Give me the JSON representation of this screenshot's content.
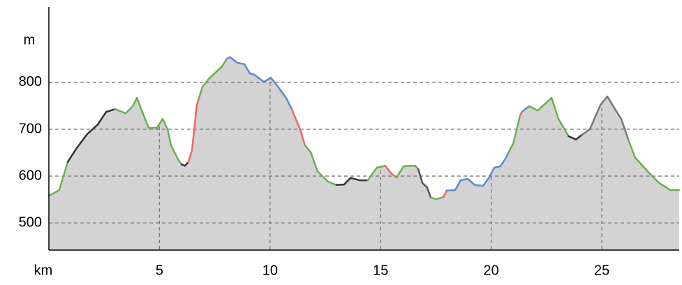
{
  "chart_data": {
    "type": "area",
    "x_label": "km",
    "y_label": "m",
    "xlim": [
      0,
      28.5
    ],
    "ylim": [
      442,
      961
    ],
    "xticks": [
      5,
      10,
      15,
      20,
      25
    ],
    "yticks": [
      500,
      600,
      700,
      800
    ],
    "grid": true,
    "fill_color": "#d3d3d3",
    "series": [
      {
        "color": "#6ab04c",
        "x": [
          0,
          0.47,
          0.85
        ],
        "values": [
          558,
          570,
          630
        ]
      },
      {
        "color": "#333333",
        "x": [
          0.85,
          1.26,
          1.74,
          2.21,
          2.59,
          3.0
        ],
        "values": [
          630,
          660,
          690,
          710,
          737,
          743
        ]
      },
      {
        "color": "#6ab04c",
        "x": [
          3.0,
          3.47,
          3.79,
          3.98,
          4.2,
          4.51,
          4.89,
          5.14,
          5.37,
          5.52,
          5.84,
          6.0
        ],
        "values": [
          743,
          734,
          749,
          767,
          740,
          703,
          703,
          722,
          700,
          666,
          636,
          625
        ]
      },
      {
        "color": "#333333",
        "x": [
          6.0,
          6.15,
          6.31
        ],
        "values": [
          625,
          622,
          630
        ]
      },
      {
        "color": "#f06464",
        "x": [
          6.31,
          6.47,
          6.69,
          6.79
        ],
        "values": [
          630,
          655,
          752,
          767
        ]
      },
      {
        "color": "#6ab04c",
        "x": [
          6.79,
          6.94,
          7.26,
          7.83,
          8.05
        ],
        "values": [
          767,
          790,
          809,
          834,
          851
        ]
      },
      {
        "color": "#5b8ad0",
        "x": [
          8.05,
          8.2,
          8.52,
          8.84,
          9.09,
          9.31,
          9.72,
          10.04,
          10.26,
          10.73,
          10.98
        ],
        "values": [
          851,
          854,
          842,
          839,
          819,
          816,
          801,
          810,
          797,
          767,
          743
        ]
      },
      {
        "color": "#f06464",
        "x": [
          10.98,
          11.36,
          11.58
        ],
        "values": [
          743,
          700,
          666
        ]
      },
      {
        "color": "#6ab04c",
        "x": [
          11.58,
          11.84,
          12.15,
          12.63,
          13.0
        ],
        "values": [
          666,
          651,
          610,
          588,
          581
        ]
      },
      {
        "color": "#333333",
        "x": [
          13.0,
          13.35,
          13.64,
          14.05,
          14.42
        ],
        "values": [
          581,
          582,
          596,
          591,
          591
        ]
      },
      {
        "color": "#6ab04c",
        "x": [
          14.42,
          14.83,
          15.21
        ],
        "values": [
          591,
          618,
          622
        ]
      },
      {
        "color": "#f06464",
        "x": [
          15.21,
          15.47,
          15.72
        ],
        "values": [
          622,
          606,
          597
        ]
      },
      {
        "color": "#6ab04c",
        "x": [
          15.72,
          16.04,
          16.57,
          16.7
        ],
        "values": [
          597,
          621,
          622,
          615
        ]
      },
      {
        "color": "#555555",
        "x": [
          16.7,
          16.89,
          17.1,
          17.27
        ],
        "values": [
          615,
          585,
          576,
          554
        ]
      },
      {
        "color": "#6ab04c",
        "x": [
          17.27,
          17.52,
          17.83
        ],
        "values": [
          554,
          551,
          555
        ]
      },
      {
        "color": "#f06464",
        "x": [
          17.83,
          17.99
        ],
        "values": [
          555,
          569
        ]
      },
      {
        "color": "#5b8ad0",
        "x": [
          17.99,
          18.37,
          18.62,
          18.94,
          19.26,
          19.63,
          19.89,
          20.14,
          20.42,
          20.68,
          20.8
        ],
        "values": [
          569,
          570,
          591,
          594,
          581,
          579,
          596,
          618,
          621,
          640,
          652
        ]
      },
      {
        "color": "#6ab04c",
        "x": [
          20.8,
          21.0,
          21.31
        ],
        "values": [
          652,
          670,
          730
        ]
      },
      {
        "color": "#f06464",
        "x": [
          21.31,
          21.4
        ],
        "values": [
          730,
          738
        ]
      },
      {
        "color": "#5b8ad0",
        "x": [
          21.4,
          21.72
        ],
        "values": [
          738,
          749
        ]
      },
      {
        "color": "#6ab04c",
        "x": [
          21.72,
          22.1,
          22.57,
          22.73,
          23.04,
          23.5
        ],
        "values": [
          749,
          740,
          760,
          767,
          722,
          685
        ]
      },
      {
        "color": "#333333",
        "x": [
          23.5,
          23.83,
          24.1
        ],
        "values": [
          685,
          678,
          688
        ]
      },
      {
        "color": "#777777",
        "x": [
          24.1,
          24.46,
          24.94,
          25.25,
          25.57,
          25.88,
          26.2
        ],
        "values": [
          688,
          700,
          752,
          770,
          745,
          722,
          678
        ]
      },
      {
        "color": "#6ab04c",
        "x": [
          26.2,
          26.5,
          27.15,
          27.6,
          28.1,
          28.5
        ],
        "values": [
          678,
          640,
          606,
          585,
          570,
          570
        ]
      }
    ]
  }
}
